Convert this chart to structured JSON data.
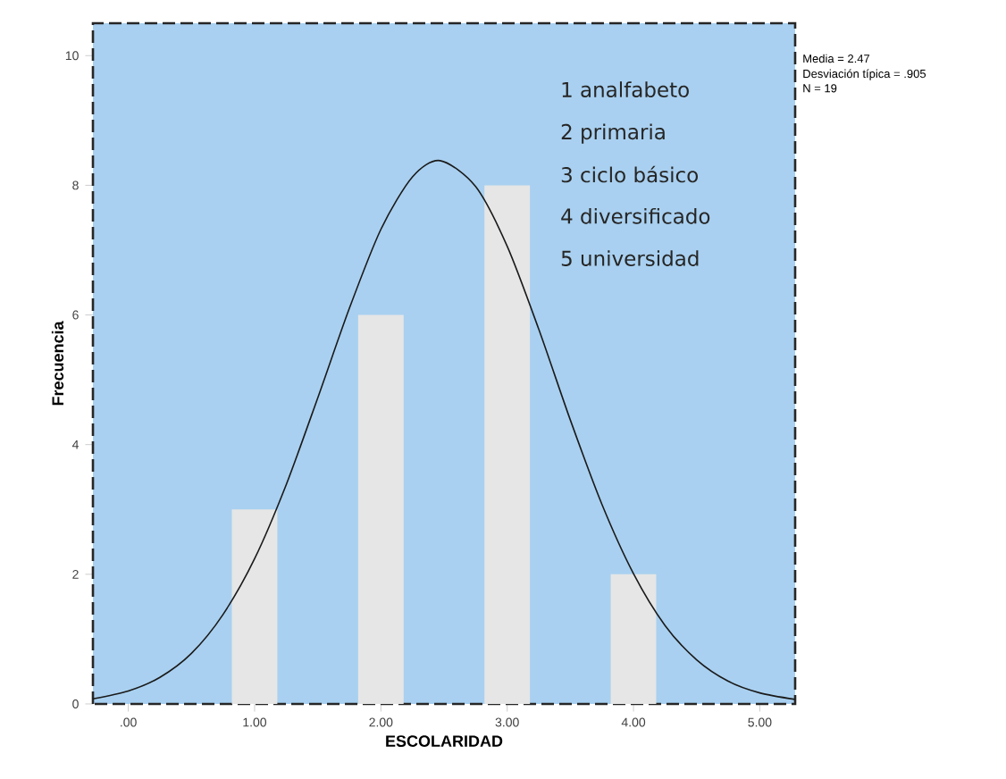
{
  "chart_data": {
    "type": "bar",
    "xlabel": "ESCOLARIDAD",
    "ylabel": "Frecuencia",
    "xlim": [
      -0.28,
      5.28
    ],
    "ylim": [
      0,
      10.5
    ],
    "xticks": [
      {
        "value": 0,
        "label": ".00"
      },
      {
        "value": 1,
        "label": "1.00"
      },
      {
        "value": 2,
        "label": "2.00"
      },
      {
        "value": 3,
        "label": "3.00"
      },
      {
        "value": 4,
        "label": "4.00"
      },
      {
        "value": 5,
        "label": "5.00"
      }
    ],
    "yticks": [
      0,
      2,
      4,
      6,
      8,
      10
    ],
    "marker": "none",
    "series": [
      {
        "color": "#e6e6e6",
        "x": [
          1,
          2,
          3,
          4
        ],
        "values": [
          3,
          6,
          8,
          2
        ]
      },
      {
        "type": "line",
        "color": "#1a1a1a",
        "x": [
          -0.28,
          0,
          0.25,
          0.5,
          0.75,
          1,
          1.25,
          1.5,
          1.75,
          2,
          2.25,
          2.47,
          2.75,
          3,
          3.25,
          3.5,
          3.75,
          4,
          4.25,
          4.5,
          4.75,
          5,
          5.28
        ],
        "values": [
          0.08,
          0.2,
          0.41,
          0.78,
          1.38,
          2.24,
          3.38,
          4.72,
          6.1,
          7.32,
          8.13,
          8.38,
          7.98,
          7.06,
          5.78,
          4.38,
          3.08,
          2.01,
          1.21,
          0.68,
          0.35,
          0.17,
          0.07
        ]
      }
    ],
    "annotations": [
      "Media = 2.47",
      "Desviación típica = .905",
      "N = 19",
      "1 analfabeto",
      "2 primaria",
      "3 ciclo básico",
      "4 diversificado",
      "5 universidad"
    ]
  }
}
